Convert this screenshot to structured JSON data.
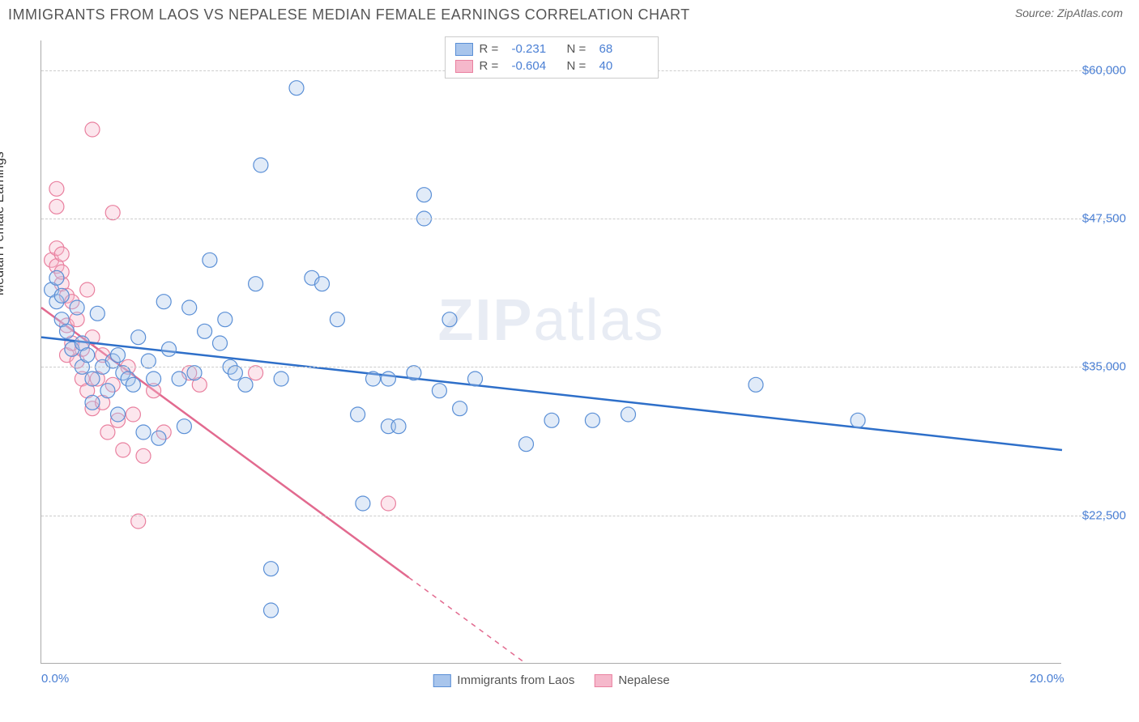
{
  "header": {
    "title": "IMMIGRANTS FROM LAOS VS NEPALESE MEDIAN FEMALE EARNINGS CORRELATION CHART",
    "source_prefix": "Source: ",
    "source_name": "ZipAtlas.com"
  },
  "chart": {
    "type": "scatter",
    "watermark": "ZIPatlas",
    "y_axis_label": "Median Female Earnings",
    "background_color": "#ffffff",
    "grid_color": "#cccccc",
    "axis_color": "#aaaaaa",
    "xlim": [
      0,
      20
    ],
    "ylim": [
      10000,
      62500
    ],
    "x_ticks": [
      {
        "value": 0,
        "label": "0.0%"
      },
      {
        "value": 20,
        "label": "20.0%"
      }
    ],
    "y_ticks": [
      {
        "value": 22500,
        "label": "$22,500"
      },
      {
        "value": 35000,
        "label": "$35,000"
      },
      {
        "value": 47500,
        "label": "$47,500"
      },
      {
        "value": 60000,
        "label": "$60,000"
      }
    ],
    "marker_radius": 9,
    "marker_stroke_width": 1.2,
    "marker_fill_opacity": 0.35,
    "trend_line_width": 2.5,
    "series": [
      {
        "id": "laos",
        "label": "Immigrants from Laos",
        "color_fill": "#a8c5ec",
        "color_stroke": "#5a8fd6",
        "line_color": "#2e6fc9",
        "R": "-0.231",
        "N": "68",
        "trend": {
          "x1": 0,
          "y1": 37500,
          "x2": 20,
          "y2": 28000,
          "extrapolate_from_x": null
        },
        "points": [
          [
            0.2,
            41500
          ],
          [
            0.3,
            40500
          ],
          [
            0.3,
            42500
          ],
          [
            0.4,
            39000
          ],
          [
            0.4,
            41000
          ],
          [
            0.5,
            38000
          ],
          [
            0.6,
            36500
          ],
          [
            0.7,
            40000
          ],
          [
            0.8,
            35000
          ],
          [
            0.8,
            37000
          ],
          [
            0.9,
            36000
          ],
          [
            1.0,
            32000
          ],
          [
            1.0,
            34000
          ],
          [
            1.1,
            39500
          ],
          [
            1.2,
            35000
          ],
          [
            1.3,
            33000
          ],
          [
            1.4,
            35500
          ],
          [
            1.5,
            31000
          ],
          [
            1.5,
            36000
          ],
          [
            1.6,
            34500
          ],
          [
            1.7,
            34000
          ],
          [
            1.8,
            33500
          ],
          [
            1.9,
            37500
          ],
          [
            2.0,
            29500
          ],
          [
            2.1,
            35500
          ],
          [
            2.2,
            34000
          ],
          [
            2.3,
            29000
          ],
          [
            2.4,
            40500
          ],
          [
            2.5,
            36500
          ],
          [
            2.7,
            34000
          ],
          [
            2.8,
            30000
          ],
          [
            2.9,
            40000
          ],
          [
            3.0,
            34500
          ],
          [
            3.2,
            38000
          ],
          [
            3.3,
            44000
          ],
          [
            3.5,
            37000
          ],
          [
            3.6,
            39000
          ],
          [
            3.7,
            35000
          ],
          [
            3.8,
            34500
          ],
          [
            4.0,
            33500
          ],
          [
            4.2,
            42000
          ],
          [
            4.3,
            52000
          ],
          [
            4.5,
            18000
          ],
          [
            4.5,
            14500
          ],
          [
            4.7,
            34000
          ],
          [
            5.0,
            58500
          ],
          [
            5.3,
            42500
          ],
          [
            5.5,
            42000
          ],
          [
            5.8,
            39000
          ],
          [
            6.2,
            31000
          ],
          [
            6.3,
            23500
          ],
          [
            6.5,
            34000
          ],
          [
            6.8,
            30000
          ],
          [
            6.8,
            34000
          ],
          [
            7.0,
            30000
          ],
          [
            7.3,
            34500
          ],
          [
            7.5,
            47500
          ],
          [
            7.5,
            49500
          ],
          [
            7.8,
            33000
          ],
          [
            8.0,
            39000
          ],
          [
            8.2,
            31500
          ],
          [
            8.5,
            34000
          ],
          [
            9.5,
            28500
          ],
          [
            10.0,
            30500
          ],
          [
            10.8,
            30500
          ],
          [
            11.5,
            31000
          ],
          [
            14.0,
            33500
          ],
          [
            16.0,
            30500
          ]
        ]
      },
      {
        "id": "nepalese",
        "label": "Nepalese",
        "color_fill": "#f5b8cb",
        "color_stroke": "#e9809f",
        "line_color": "#e26a8f",
        "R": "-0.604",
        "N": "40",
        "trend": {
          "x1": 0,
          "y1": 40000,
          "x2": 9.5,
          "y2": 10000,
          "extrapolate_from_x": 7.2
        },
        "points": [
          [
            0.2,
            44000
          ],
          [
            0.3,
            43500
          ],
          [
            0.3,
            45000
          ],
          [
            0.3,
            48500
          ],
          [
            0.3,
            50000
          ],
          [
            0.4,
            42000
          ],
          [
            0.4,
            43000
          ],
          [
            0.4,
            44500
          ],
          [
            0.5,
            41000
          ],
          [
            0.5,
            36000
          ],
          [
            0.5,
            38500
          ],
          [
            0.6,
            40500
          ],
          [
            0.6,
            37000
          ],
          [
            0.7,
            39000
          ],
          [
            0.7,
            35500
          ],
          [
            0.8,
            34000
          ],
          [
            0.8,
            36500
          ],
          [
            0.9,
            41500
          ],
          [
            0.9,
            33000
          ],
          [
            1.0,
            37500
          ],
          [
            1.0,
            31500
          ],
          [
            1.0,
            55000
          ],
          [
            1.1,
            34000
          ],
          [
            1.2,
            32000
          ],
          [
            1.2,
            36000
          ],
          [
            1.3,
            29500
          ],
          [
            1.4,
            33500
          ],
          [
            1.4,
            48000
          ],
          [
            1.5,
            30500
          ],
          [
            1.6,
            28000
          ],
          [
            1.7,
            35000
          ],
          [
            1.8,
            31000
          ],
          [
            1.9,
            22000
          ],
          [
            2.0,
            27500
          ],
          [
            2.2,
            33000
          ],
          [
            2.4,
            29500
          ],
          [
            2.9,
            34500
          ],
          [
            3.1,
            33500
          ],
          [
            4.2,
            34500
          ],
          [
            6.8,
            23500
          ]
        ]
      }
    ],
    "legend_top_labels": {
      "R": "R =",
      "N": "N ="
    },
    "tick_label_color": "#4a7fd4",
    "axis_label_color": "#333333",
    "title_fontsize": 18,
    "tick_fontsize": 15,
    "watermark_color": "rgba(100,130,180,0.15)",
    "watermark_fontsize": 72
  }
}
